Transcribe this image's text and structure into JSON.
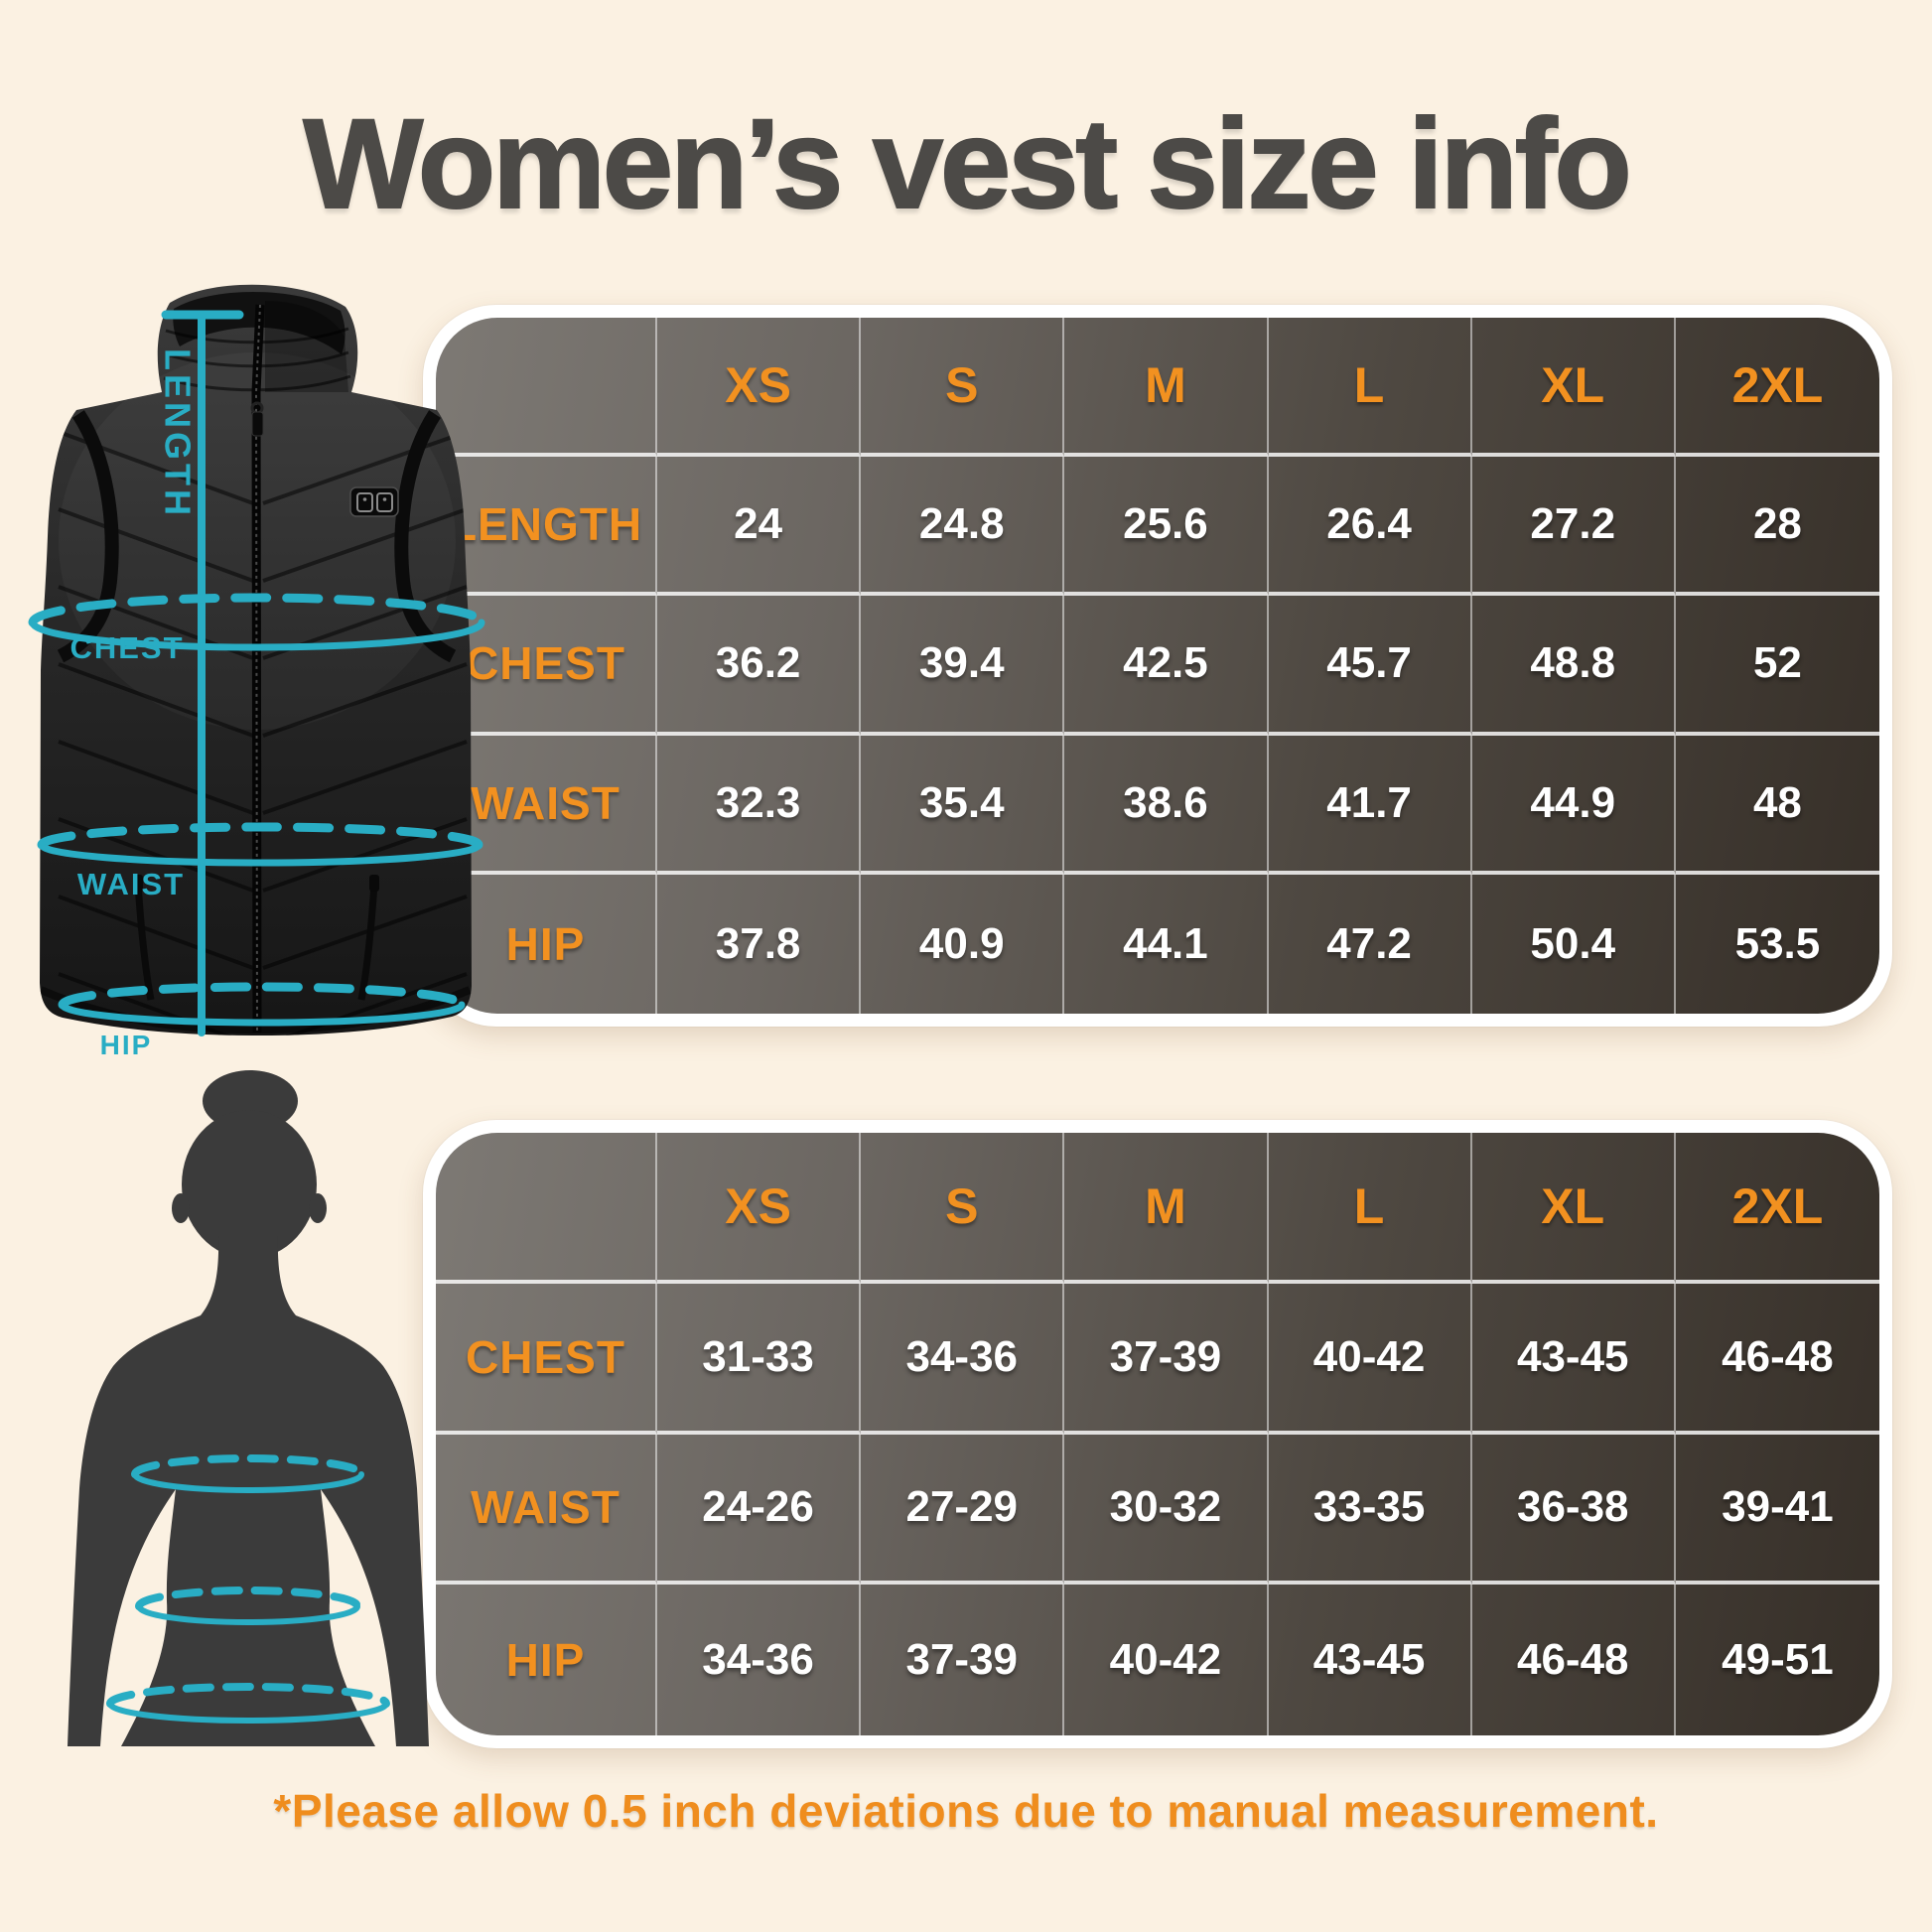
{
  "page": {
    "title": "Women’s vest size info",
    "footnote": "*Please allow 0.5 inch deviations due to manual measurement."
  },
  "colors": {
    "background": "#fbf1e2",
    "accent_orange": "#f29120",
    "note_orange": "#ef8d1e",
    "teal_measure": "#29adc4",
    "title_gray": "#4c4a47",
    "table_gradient_start": "#7d7974",
    "table_gradient_end": "#362f28",
    "table_border_white": "#ffffff",
    "value_text": "#ffffff"
  },
  "vest_diagram": {
    "length_label": "LENGTH",
    "chest_label": "CHEST",
    "waist_label": "WAIST",
    "hip_label": "HIP"
  },
  "garment_table": {
    "sizes": [
      "XS",
      "S",
      "M",
      "L",
      "XL",
      "2XL"
    ],
    "rows": [
      {
        "label": "LENGTH",
        "values": [
          "24",
          "24.8",
          "25.6",
          "26.4",
          "27.2",
          "28"
        ]
      },
      {
        "label": "CHEST",
        "values": [
          "36.2",
          "39.4",
          "42.5",
          "45.7",
          "48.8",
          "52"
        ]
      },
      {
        "label": "WAIST",
        "values": [
          "32.3",
          "35.4",
          "38.6",
          "41.7",
          "44.9",
          "48"
        ]
      },
      {
        "label": "HIP",
        "values": [
          "37.8",
          "40.9",
          "44.1",
          "47.2",
          "50.4",
          "53.5"
        ]
      }
    ]
  },
  "body_table": {
    "sizes": [
      "XS",
      "S",
      "M",
      "L",
      "XL",
      "2XL"
    ],
    "rows": [
      {
        "label": "CHEST",
        "values": [
          "31-33",
          "34-36",
          "37-39",
          "40-42",
          "43-45",
          "46-48"
        ]
      },
      {
        "label": "WAIST",
        "values": [
          "24-26",
          "27-29",
          "30-32",
          "33-35",
          "36-38",
          "39-41"
        ]
      },
      {
        "label": "HIP",
        "values": [
          "34-36",
          "37-39",
          "40-42",
          "43-45",
          "46-48",
          "49-51"
        ]
      }
    ]
  },
  "chart_data": [
    {
      "type": "table",
      "columns": [
        "",
        "XS",
        "S",
        "M",
        "L",
        "XL",
        "2XL"
      ],
      "rows": [
        [
          "LENGTH",
          24,
          24.8,
          25.6,
          26.4,
          27.2,
          28
        ],
        [
          "CHEST",
          36.2,
          39.4,
          42.5,
          45.7,
          48.8,
          52
        ],
        [
          "WAIST",
          32.3,
          35.4,
          38.6,
          41.7,
          44.9,
          48
        ],
        [
          "HIP",
          37.8,
          40.9,
          44.1,
          47.2,
          50.4,
          53.5
        ]
      ]
    },
    {
      "type": "table",
      "columns": [
        "",
        "XS",
        "S",
        "M",
        "L",
        "XL",
        "2XL"
      ],
      "rows": [
        [
          "CHEST",
          "31-33",
          "34-36",
          "37-39",
          "40-42",
          "43-45",
          "46-48"
        ],
        [
          "WAIST",
          "24-26",
          "27-29",
          "30-32",
          "33-35",
          "36-38",
          "39-41"
        ],
        [
          "HIP",
          "34-36",
          "37-39",
          "40-42",
          "43-45",
          "46-48",
          "49-51"
        ]
      ]
    }
  ]
}
